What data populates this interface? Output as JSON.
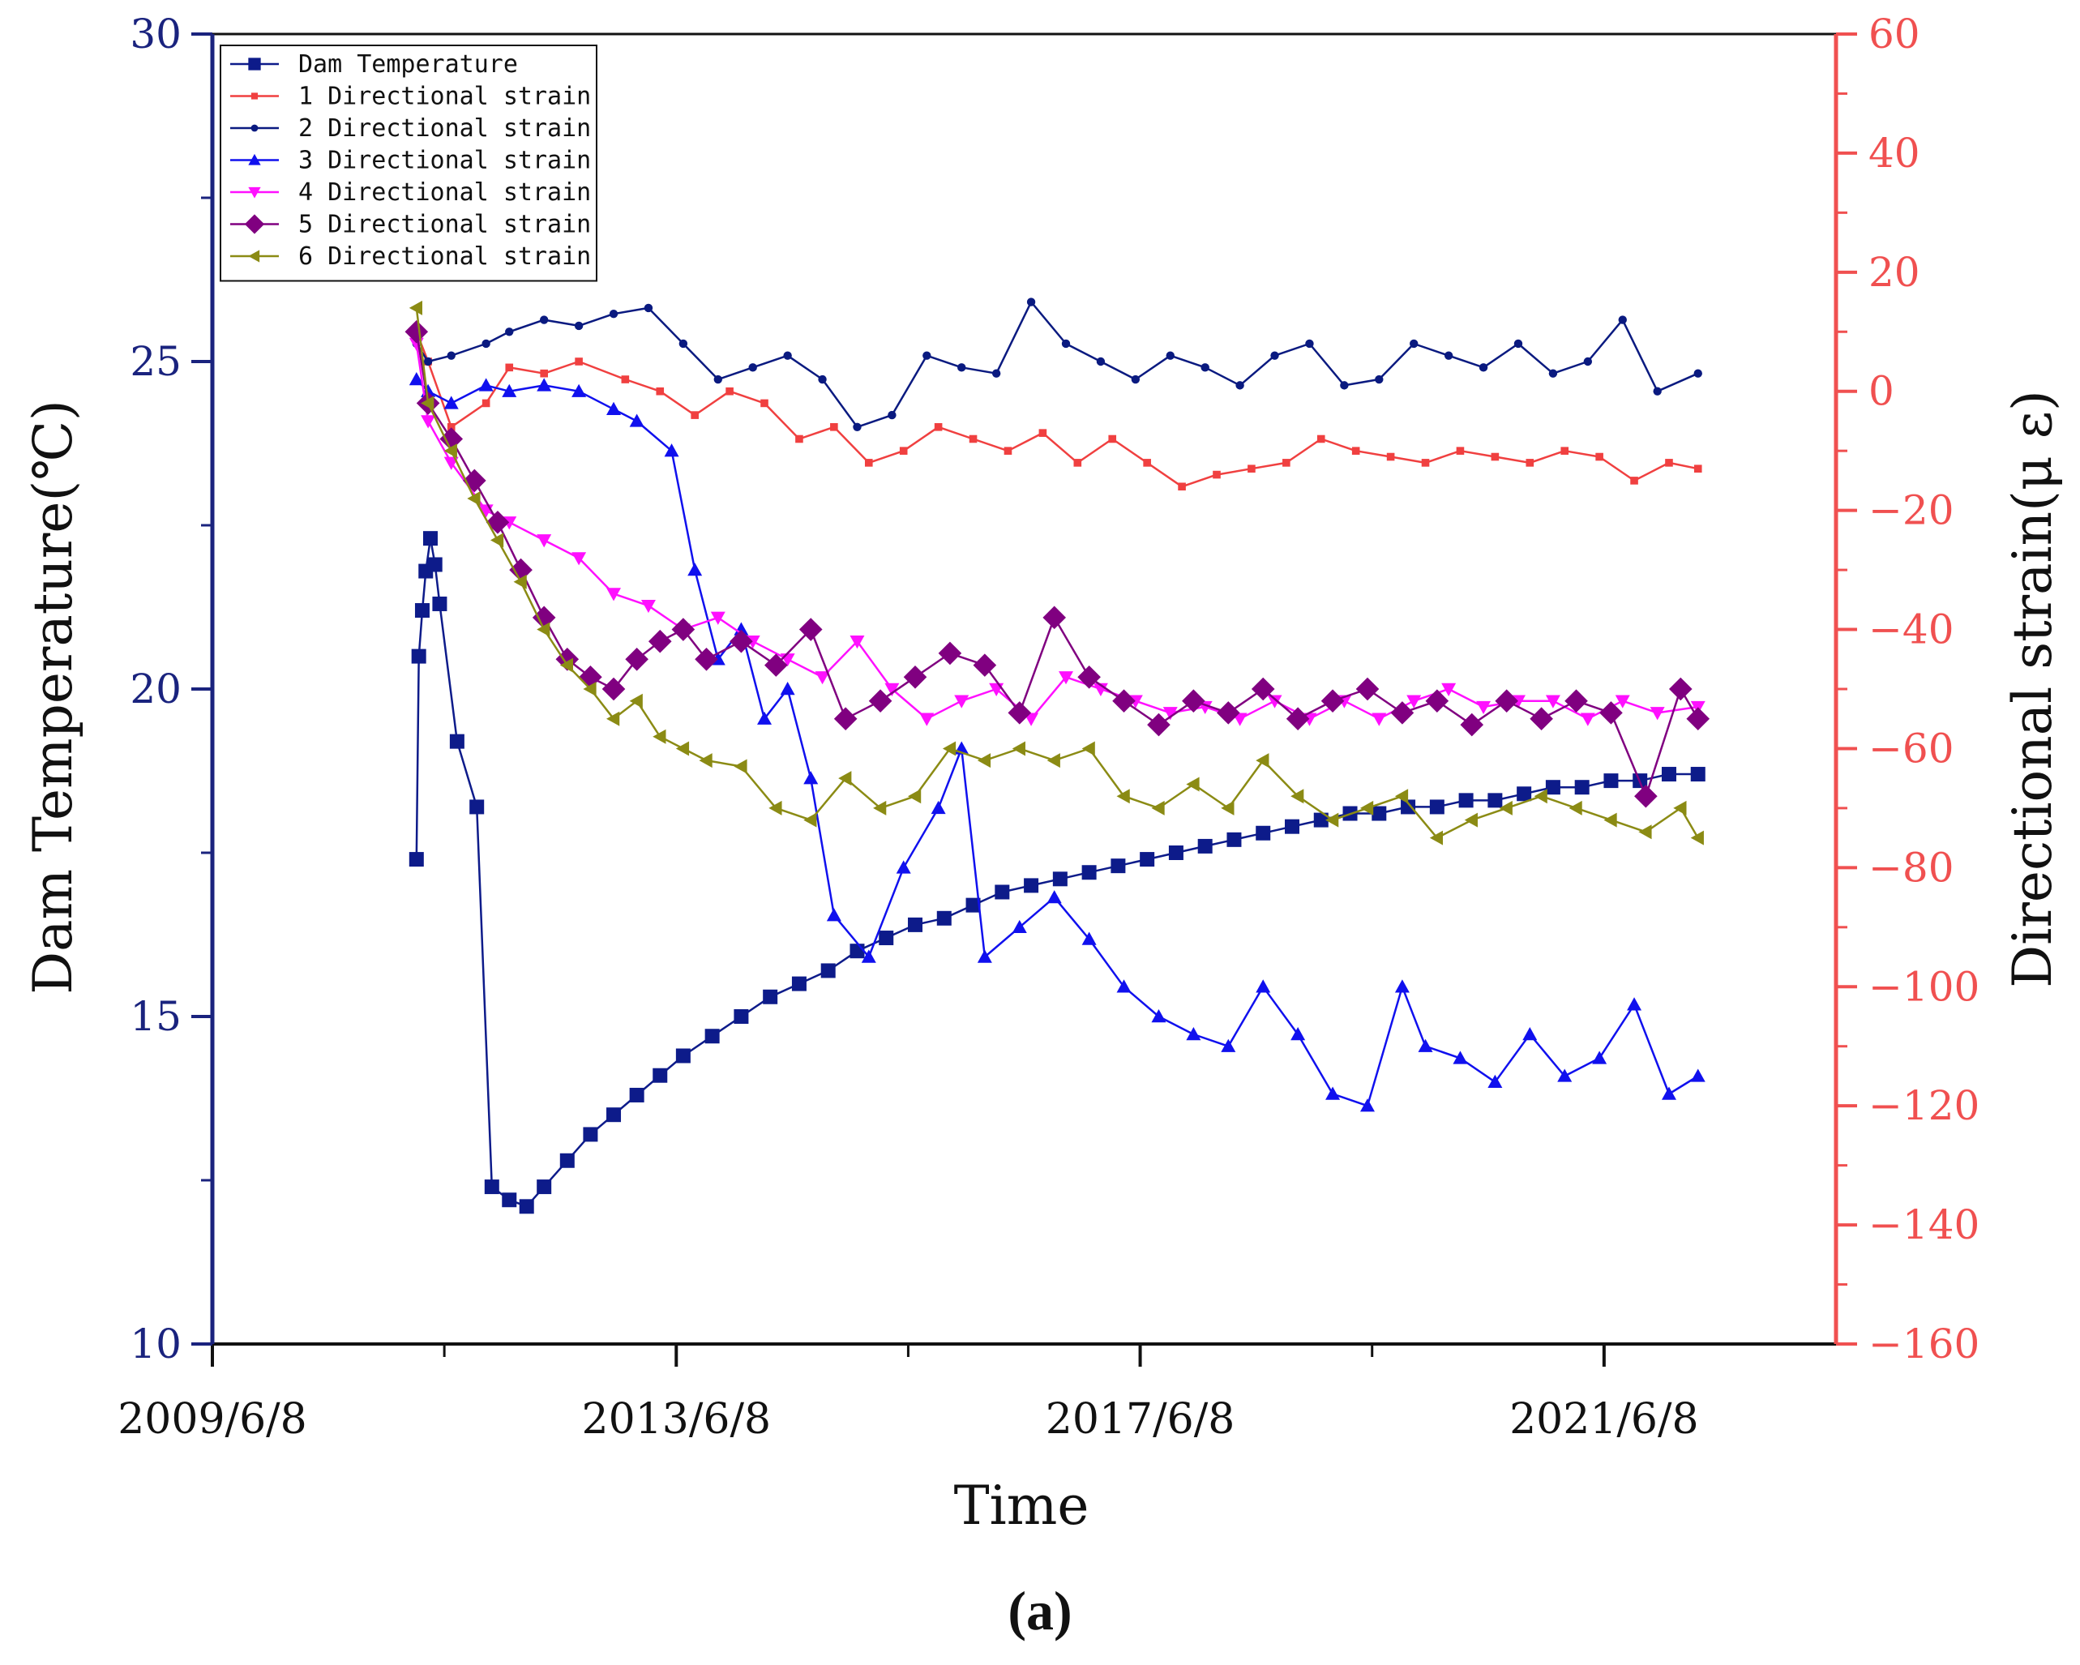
{
  "chart_data": {
    "type": "line",
    "panel_label": "(a)",
    "xlabel": "Time",
    "ylabel_left": "Dam Temperature(℃)",
    "ylabel_right": "Directional strain(μ ε)",
    "x_ticks": [
      "2009/6/8",
      "2013/6/8",
      "2017/6/8",
      "2021/6/8"
    ],
    "x_tick_years": [
      2009.44,
      2013.44,
      2017.44,
      2021.44
    ],
    "xlim": [
      2009.44,
      2023.44
    ],
    "ylim_left": [
      10,
      30
    ],
    "yticks_left": [
      10,
      15,
      20,
      25,
      30
    ],
    "ylim_right": [
      -160,
      60
    ],
    "yticks_right": [
      -160,
      -140,
      -120,
      -100,
      -80,
      -60,
      -40,
      -20,
      0,
      20,
      40,
      60
    ],
    "grid": false,
    "legend_position": "top-left",
    "colors": {
      "left_axis": "#1a237e",
      "right_axis": "#f05050"
    },
    "series": [
      {
        "name": "Dam Temperature",
        "axis": "left",
        "color": "#0d1b8a",
        "marker": "square",
        "x": [
          2011.2,
          2011.22,
          2011.25,
          2011.28,
          2011.32,
          2011.36,
          2011.4,
          2011.55,
          2011.72,
          2011.85,
          2012.0,
          2012.15,
          2012.3,
          2012.5,
          2012.7,
          2012.9,
          2013.1,
          2013.3,
          2013.5,
          2013.75,
          2014.0,
          2014.25,
          2014.5,
          2014.75,
          2015.0,
          2015.25,
          2015.5,
          2015.75,
          2016.0,
          2016.25,
          2016.5,
          2016.75,
          2017.0,
          2017.25,
          2017.5,
          2017.75,
          2018.0,
          2018.25,
          2018.5,
          2018.75,
          2019.0,
          2019.25,
          2019.5,
          2019.75,
          2020.0,
          2020.25,
          2020.5,
          2020.75,
          2021.0,
          2021.25,
          2021.5,
          2021.75,
          2022.0,
          2022.25
        ],
        "y": [
          17.4,
          20.5,
          21.2,
          21.8,
          22.3,
          21.9,
          21.3,
          19.2,
          18.2,
          12.4,
          12.2,
          12.1,
          12.4,
          12.8,
          13.2,
          13.5,
          13.8,
          14.1,
          14.4,
          14.7,
          15.0,
          15.3,
          15.5,
          15.7,
          16.0,
          16.2,
          16.4,
          16.5,
          16.7,
          16.9,
          17.0,
          17.1,
          17.2,
          17.3,
          17.4,
          17.5,
          17.6,
          17.7,
          17.8,
          17.9,
          18.0,
          18.1,
          18.1,
          18.2,
          18.2,
          18.3,
          18.3,
          18.4,
          18.5,
          18.5,
          18.6,
          18.6,
          18.7,
          18.7
        ]
      },
      {
        "name": "1 Directional strain",
        "axis": "right",
        "color": "#f04040",
        "marker": "small-square",
        "x": [
          2011.2,
          2011.3,
          2011.5,
          2011.8,
          2012.0,
          2012.3,
          2012.6,
          2013.0,
          2013.3,
          2013.6,
          2013.9,
          2014.2,
          2014.5,
          2014.8,
          2015.1,
          2015.4,
          2015.7,
          2016.0,
          2016.3,
          2016.6,
          2016.9,
          2017.2,
          2017.5,
          2017.8,
          2018.1,
          2018.4,
          2018.7,
          2019.0,
          2019.3,
          2019.6,
          2019.9,
          2020.2,
          2020.5,
          2020.8,
          2021.1,
          2021.4,
          2021.7,
          2022.0,
          2022.25
        ],
        "y": [
          10,
          5,
          -6,
          -2,
          4,
          3,
          5,
          2,
          0,
          -4,
          0,
          -2,
          -8,
          -6,
          -12,
          -10,
          -6,
          -8,
          -10,
          -7,
          -12,
          -8,
          -12,
          -16,
          -14,
          -13,
          -12,
          -8,
          -10,
          -11,
          -12,
          -10,
          -11,
          -12,
          -10,
          -11,
          -15,
          -12,
          -13
        ]
      },
      {
        "name": "2 Directional strain",
        "axis": "right",
        "color": "#0a1a80",
        "marker": "circle",
        "x": [
          2011.2,
          2011.3,
          2011.5,
          2011.8,
          2012.0,
          2012.3,
          2012.6,
          2012.9,
          2013.2,
          2013.5,
          2013.8,
          2014.1,
          2014.4,
          2014.7,
          2015.0,
          2015.3,
          2015.6,
          2015.9,
          2016.2,
          2016.5,
          2016.8,
          2017.1,
          2017.4,
          2017.7,
          2018.0,
          2018.3,
          2018.6,
          2018.9,
          2019.2,
          2019.5,
          2019.8,
          2020.1,
          2020.4,
          2020.7,
          2021.0,
          2021.3,
          2021.6,
          2021.9,
          2022.25
        ],
        "y": [
          8,
          5,
          6,
          8,
          10,
          12,
          11,
          13,
          14,
          8,
          2,
          4,
          6,
          2,
          -6,
          -4,
          6,
          4,
          3,
          15,
          8,
          5,
          2,
          6,
          4,
          1,
          6,
          8,
          1,
          2,
          8,
          6,
          4,
          8,
          3,
          5,
          12,
          0,
          3
        ]
      },
      {
        "name": "3 Directional strain",
        "axis": "right",
        "color": "#1010ee",
        "marker": "triangle-up",
        "x": [
          2011.2,
          2011.3,
          2011.5,
          2011.8,
          2012.0,
          2012.3,
          2012.6,
          2012.9,
          2013.1,
          2013.4,
          2013.6,
          2013.8,
          2014.0,
          2014.2,
          2014.4,
          2014.6,
          2014.8,
          2015.1,
          2015.4,
          2015.7,
          2015.9,
          2016.1,
          2016.4,
          2016.7,
          2017.0,
          2017.3,
          2017.6,
          2017.9,
          2018.2,
          2018.5,
          2018.8,
          2019.1,
          2019.4,
          2019.7,
          2019.9,
          2020.2,
          2020.5,
          2020.8,
          2021.1,
          2021.4,
          2021.7,
          2022.0,
          2022.25
        ],
        "y": [
          2,
          0,
          -2,
          1,
          0,
          1,
          0,
          -3,
          -5,
          -10,
          -30,
          -45,
          -40,
          -55,
          -50,
          -65,
          -88,
          -95,
          -80,
          -70,
          -60,
          -95,
          -90,
          -85,
          -92,
          -100,
          -105,
          -108,
          -110,
          -100,
          -108,
          -118,
          -120,
          -100,
          -110,
          -112,
          -116,
          -108,
          -115,
          -112,
          -103,
          -118,
          -115
        ]
      },
      {
        "name": "4 Directional strain",
        "axis": "right",
        "color": "#ff10ff",
        "marker": "triangle-down",
        "x": [
          2011.2,
          2011.3,
          2011.5,
          2011.8,
          2012.0,
          2012.3,
          2012.6,
          2012.9,
          2013.2,
          2013.5,
          2013.8,
          2014.1,
          2014.4,
          2014.7,
          2015.0,
          2015.3,
          2015.6,
          2015.9,
          2016.2,
          2016.5,
          2016.8,
          2017.1,
          2017.4,
          2017.7,
          2018.0,
          2018.3,
          2018.6,
          2018.9,
          2019.2,
          2019.5,
          2019.8,
          2020.1,
          2020.4,
          2020.7,
          2021.0,
          2021.3,
          2021.6,
          2021.9,
          2022.25
        ],
        "y": [
          8,
          -5,
          -12,
          -20,
          -22,
          -25,
          -28,
          -34,
          -36,
          -40,
          -38,
          -42,
          -45,
          -48,
          -42,
          -50,
          -55,
          -52,
          -50,
          -55,
          -48,
          -50,
          -52,
          -54,
          -53,
          -55,
          -52,
          -55,
          -52,
          -55,
          -52,
          -50,
          -53,
          -52,
          -52,
          -55,
          -52,
          -54,
          -53
        ]
      },
      {
        "name": "5 Directional strain",
        "axis": "right",
        "color": "#800080",
        "marker": "diamond",
        "x": [
          2011.2,
          2011.3,
          2011.5,
          2011.7,
          2011.9,
          2012.1,
          2012.3,
          2012.5,
          2012.7,
          2012.9,
          2013.1,
          2013.3,
          2013.5,
          2013.7,
          2014.0,
          2014.3,
          2014.6,
          2014.9,
          2015.2,
          2015.5,
          2015.8,
          2016.1,
          2016.4,
          2016.7,
          2017.0,
          2017.3,
          2017.6,
          2017.9,
          2018.2,
          2018.5,
          2018.8,
          2019.1,
          2019.4,
          2019.7,
          2020.0,
          2020.3,
          2020.6,
          2020.9,
          2021.2,
          2021.5,
          2021.8,
          2022.1,
          2022.25
        ],
        "y": [
          10,
          -2,
          -8,
          -15,
          -22,
          -30,
          -38,
          -45,
          -48,
          -50,
          -45,
          -42,
          -40,
          -45,
          -42,
          -46,
          -40,
          -55,
          -52,
          -48,
          -44,
          -46,
          -54,
          -38,
          -48,
          -52,
          -56,
          -52,
          -54,
          -50,
          -55,
          -52,
          -50,
          -54,
          -52,
          -56,
          -52,
          -55,
          -52,
          -54,
          -68,
          -50,
          -55
        ]
      },
      {
        "name": "6 Directional strain",
        "axis": "right",
        "color": "#8b8b14",
        "marker": "triangle-left",
        "x": [
          2011.2,
          2011.3,
          2011.5,
          2011.7,
          2011.9,
          2012.1,
          2012.3,
          2012.5,
          2012.7,
          2012.9,
          2013.1,
          2013.3,
          2013.5,
          2013.7,
          2014.0,
          2014.3,
          2014.6,
          2014.9,
          2015.2,
          2015.5,
          2015.8,
          2016.1,
          2016.4,
          2016.7,
          2017.0,
          2017.3,
          2017.6,
          2017.9,
          2018.2,
          2018.5,
          2018.8,
          2019.1,
          2019.4,
          2019.7,
          2020.0,
          2020.3,
          2020.6,
          2020.9,
          2021.2,
          2021.5,
          2021.8,
          2022.1,
          2022.25
        ],
        "y": [
          14,
          -2,
          -10,
          -18,
          -25,
          -32,
          -40,
          -46,
          -50,
          -55,
          -52,
          -58,
          -60,
          -62,
          -63,
          -70,
          -72,
          -65,
          -70,
          -68,
          -60,
          -62,
          -60,
          -62,
          -60,
          -68,
          -70,
          -66,
          -70,
          -62,
          -68,
          -72,
          -70,
          -68,
          -75,
          -72,
          -70,
          -68,
          -70,
          -72,
          -74,
          -70,
          -75
        ]
      }
    ]
  }
}
